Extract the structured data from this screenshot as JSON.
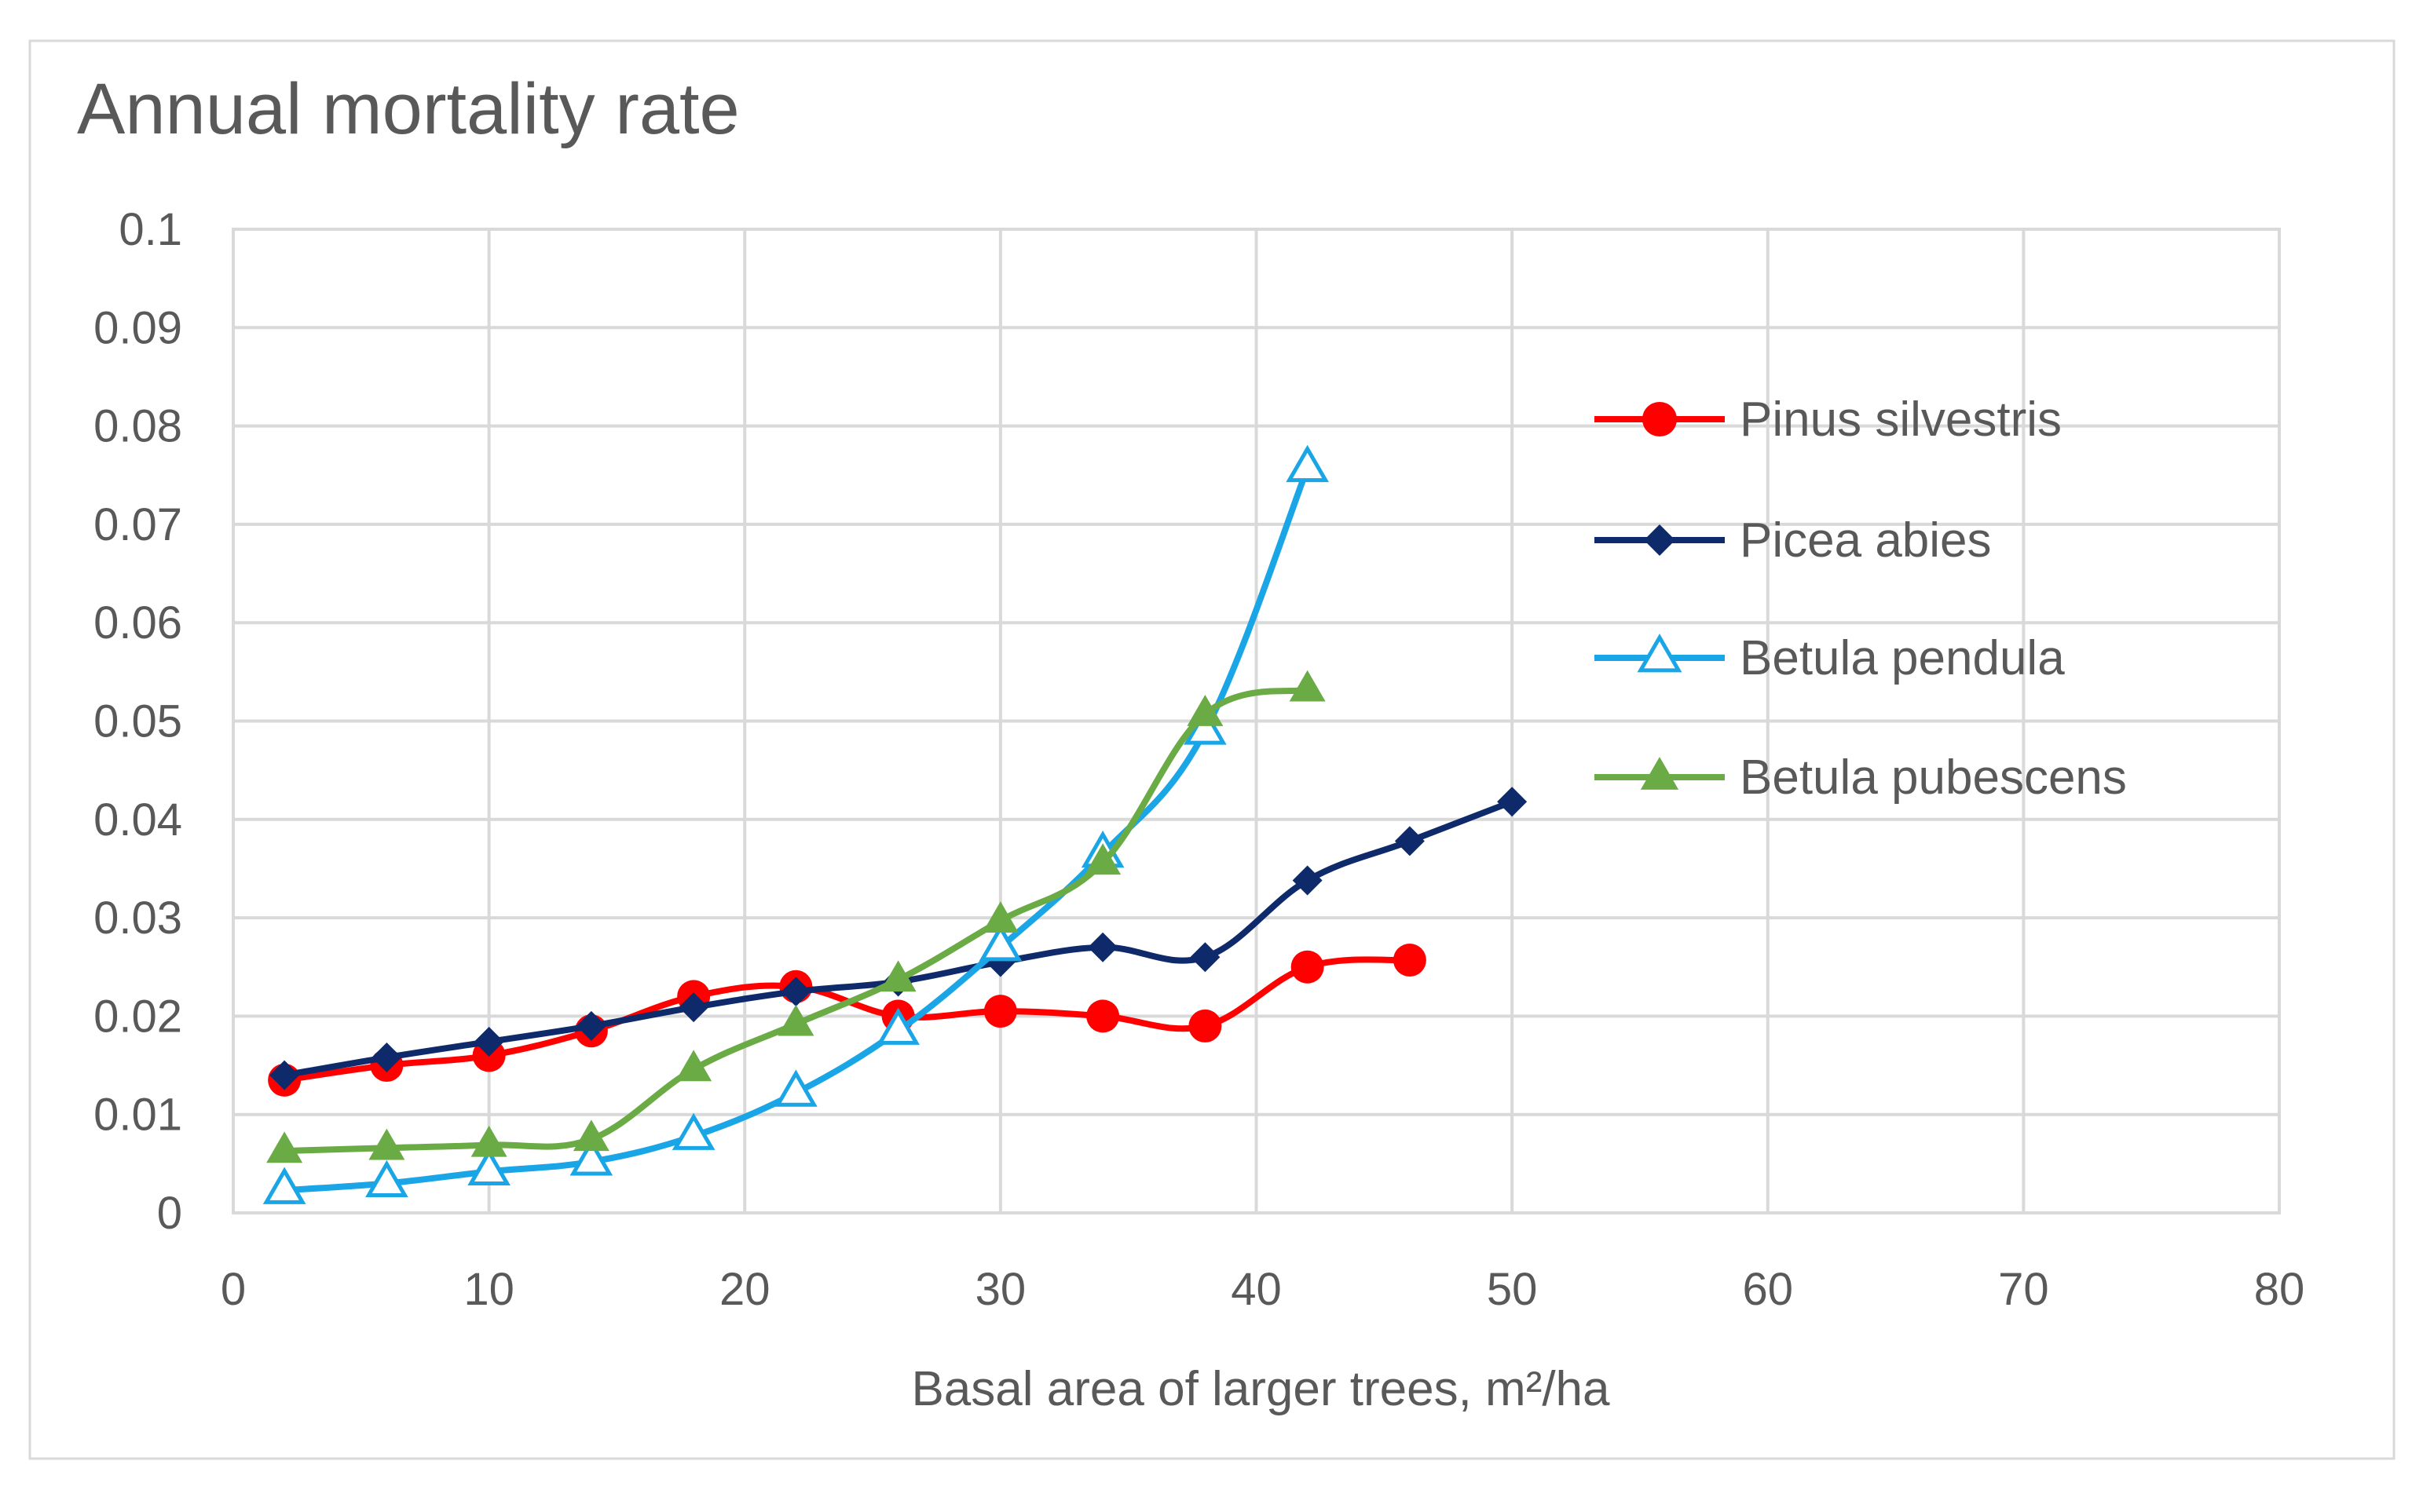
{
  "chart_data": {
    "type": "line",
    "title": "Annual mortality rate",
    "xlabel": "Basal area of larger trees, m²/ha",
    "ylabel": "",
    "xlim": [
      0,
      80
    ],
    "ylim": [
      0,
      0.1
    ],
    "grid": true,
    "legend_position": "right",
    "x_ticks": [
      {
        "value": 0,
        "label": "0"
      },
      {
        "value": 10,
        "label": "10"
      },
      {
        "value": 20,
        "label": "20"
      },
      {
        "value": 30,
        "label": "30"
      },
      {
        "value": 40,
        "label": "40"
      },
      {
        "value": 50,
        "label": "50"
      },
      {
        "value": 60,
        "label": "60"
      },
      {
        "value": 70,
        "label": "70"
      },
      {
        "value": 80,
        "label": "80"
      }
    ],
    "y_ticks": [
      {
        "value": 0,
        "label": "0"
      },
      {
        "value": 0.01,
        "label": "0.01"
      },
      {
        "value": 0.02,
        "label": "0.02"
      },
      {
        "value": 0.03,
        "label": "0.03"
      },
      {
        "value": 0.04,
        "label": "0.04"
      },
      {
        "value": 0.05,
        "label": "0.05"
      },
      {
        "value": 0.06,
        "label": "0.06"
      },
      {
        "value": 0.07,
        "label": "0.07"
      },
      {
        "value": 0.08,
        "label": "0.08"
      },
      {
        "value": 0.09,
        "label": "0.09"
      },
      {
        "value": 0.1,
        "label": "0.1"
      }
    ],
    "series": [
      {
        "name": "Pinus silvestris",
        "color": "#ff0000",
        "marker": "circle",
        "x": [
          2,
          6,
          10,
          14,
          18,
          22,
          26,
          30,
          34,
          38,
          42,
          46
        ],
        "values": [
          0.0135,
          0.015,
          0.016,
          0.0185,
          0.022,
          0.023,
          0.02,
          0.0205,
          0.02,
          0.019,
          0.025,
          0.0257
        ]
      },
      {
        "name": "Picea abies",
        "color": "#0f2a6b",
        "marker": "diamond",
        "x": [
          2,
          6,
          10,
          14,
          18,
          22,
          26,
          30,
          34,
          38,
          42,
          46,
          50
        ],
        "values": [
          0.014,
          0.0158,
          0.0174,
          0.019,
          0.0209,
          0.0225,
          0.0235,
          0.0255,
          0.027,
          0.026,
          0.0338,
          0.0378,
          0.0418
        ]
      },
      {
        "name": "Betula pendula",
        "color": "#1aa6e6",
        "marker": "triangle-open",
        "x": [
          2,
          6,
          10,
          14,
          18,
          22,
          26,
          30,
          34,
          38,
          42
        ],
        "values": [
          0.0023,
          0.003,
          0.0042,
          0.0052,
          0.0078,
          0.0122,
          0.0185,
          0.027,
          0.0365,
          0.049,
          0.0757
        ]
      },
      {
        "name": "Betula pubescens",
        "color": "#6aab45",
        "marker": "triangle",
        "x": [
          2,
          6,
          10,
          14,
          18,
          22,
          26,
          30,
          34,
          38,
          42
        ],
        "values": [
          0.0063,
          0.0066,
          0.0069,
          0.0075,
          0.0146,
          0.0192,
          0.0237,
          0.0297,
          0.0356,
          0.0507,
          0.0532
        ]
      }
    ]
  }
}
